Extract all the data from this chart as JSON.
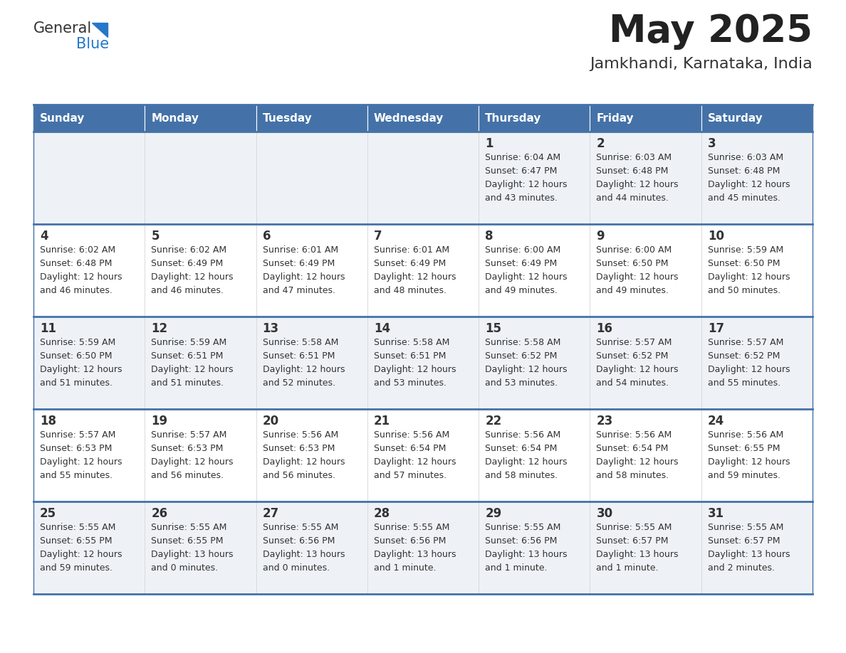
{
  "title": "May 2025",
  "subtitle": "Jamkhandi, Karnataka, India",
  "days_of_week": [
    "Sunday",
    "Monday",
    "Tuesday",
    "Wednesday",
    "Thursday",
    "Friday",
    "Saturday"
  ],
  "header_bg": "#4472a8",
  "header_text": "#ffffff",
  "row_bg_odd": "#eef2f7",
  "row_bg_even": "#ffffff",
  "cell_text_color": "#333333",
  "day_num_color": "#333333",
  "border_color": "#4472a8",
  "logo_black": "#333333",
  "logo_blue": "#2478c8",
  "calendar_data": [
    [
      null,
      null,
      null,
      null,
      {
        "day": "1",
        "sunrise": "6:04 AM",
        "sunset": "6:47 PM",
        "daylight_h": "12 hours",
        "daylight_m": "and 43 minutes."
      },
      {
        "day": "2",
        "sunrise": "6:03 AM",
        "sunset": "6:48 PM",
        "daylight_h": "12 hours",
        "daylight_m": "and 44 minutes."
      },
      {
        "day": "3",
        "sunrise": "6:03 AM",
        "sunset": "6:48 PM",
        "daylight_h": "12 hours",
        "daylight_m": "and 45 minutes."
      }
    ],
    [
      {
        "day": "4",
        "sunrise": "6:02 AM",
        "sunset": "6:48 PM",
        "daylight_h": "12 hours",
        "daylight_m": "and 46 minutes."
      },
      {
        "day": "5",
        "sunrise": "6:02 AM",
        "sunset": "6:49 PM",
        "daylight_h": "12 hours",
        "daylight_m": "and 46 minutes."
      },
      {
        "day": "6",
        "sunrise": "6:01 AM",
        "sunset": "6:49 PM",
        "daylight_h": "12 hours",
        "daylight_m": "and 47 minutes."
      },
      {
        "day": "7",
        "sunrise": "6:01 AM",
        "sunset": "6:49 PM",
        "daylight_h": "12 hours",
        "daylight_m": "and 48 minutes."
      },
      {
        "day": "8",
        "sunrise": "6:00 AM",
        "sunset": "6:49 PM",
        "daylight_h": "12 hours",
        "daylight_m": "and 49 minutes."
      },
      {
        "day": "9",
        "sunrise": "6:00 AM",
        "sunset": "6:50 PM",
        "daylight_h": "12 hours",
        "daylight_m": "and 49 minutes."
      },
      {
        "day": "10",
        "sunrise": "5:59 AM",
        "sunset": "6:50 PM",
        "daylight_h": "12 hours",
        "daylight_m": "and 50 minutes."
      }
    ],
    [
      {
        "day": "11",
        "sunrise": "5:59 AM",
        "sunset": "6:50 PM",
        "daylight_h": "12 hours",
        "daylight_m": "and 51 minutes."
      },
      {
        "day": "12",
        "sunrise": "5:59 AM",
        "sunset": "6:51 PM",
        "daylight_h": "12 hours",
        "daylight_m": "and 51 minutes."
      },
      {
        "day": "13",
        "sunrise": "5:58 AM",
        "sunset": "6:51 PM",
        "daylight_h": "12 hours",
        "daylight_m": "and 52 minutes."
      },
      {
        "day": "14",
        "sunrise": "5:58 AM",
        "sunset": "6:51 PM",
        "daylight_h": "12 hours",
        "daylight_m": "and 53 minutes."
      },
      {
        "day": "15",
        "sunrise": "5:58 AM",
        "sunset": "6:52 PM",
        "daylight_h": "12 hours",
        "daylight_m": "and 53 minutes."
      },
      {
        "day": "16",
        "sunrise": "5:57 AM",
        "sunset": "6:52 PM",
        "daylight_h": "12 hours",
        "daylight_m": "and 54 minutes."
      },
      {
        "day": "17",
        "sunrise": "5:57 AM",
        "sunset": "6:52 PM",
        "daylight_h": "12 hours",
        "daylight_m": "and 55 minutes."
      }
    ],
    [
      {
        "day": "18",
        "sunrise": "5:57 AM",
        "sunset": "6:53 PM",
        "daylight_h": "12 hours",
        "daylight_m": "and 55 minutes."
      },
      {
        "day": "19",
        "sunrise": "5:57 AM",
        "sunset": "6:53 PM",
        "daylight_h": "12 hours",
        "daylight_m": "and 56 minutes."
      },
      {
        "day": "20",
        "sunrise": "5:56 AM",
        "sunset": "6:53 PM",
        "daylight_h": "12 hours",
        "daylight_m": "and 56 minutes."
      },
      {
        "day": "21",
        "sunrise": "5:56 AM",
        "sunset": "6:54 PM",
        "daylight_h": "12 hours",
        "daylight_m": "and 57 minutes."
      },
      {
        "day": "22",
        "sunrise": "5:56 AM",
        "sunset": "6:54 PM",
        "daylight_h": "12 hours",
        "daylight_m": "and 58 minutes."
      },
      {
        "day": "23",
        "sunrise": "5:56 AM",
        "sunset": "6:54 PM",
        "daylight_h": "12 hours",
        "daylight_m": "and 58 minutes."
      },
      {
        "day": "24",
        "sunrise": "5:56 AM",
        "sunset": "6:55 PM",
        "daylight_h": "12 hours",
        "daylight_m": "and 59 minutes."
      }
    ],
    [
      {
        "day": "25",
        "sunrise": "5:55 AM",
        "sunset": "6:55 PM",
        "daylight_h": "12 hours",
        "daylight_m": "and 59 minutes."
      },
      {
        "day": "26",
        "sunrise": "5:55 AM",
        "sunset": "6:55 PM",
        "daylight_h": "13 hours",
        "daylight_m": "and 0 minutes."
      },
      {
        "day": "27",
        "sunrise": "5:55 AM",
        "sunset": "6:56 PM",
        "daylight_h": "13 hours",
        "daylight_m": "and 0 minutes."
      },
      {
        "day": "28",
        "sunrise": "5:55 AM",
        "sunset": "6:56 PM",
        "daylight_h": "13 hours",
        "daylight_m": "and 1 minute."
      },
      {
        "day": "29",
        "sunrise": "5:55 AM",
        "sunset": "6:56 PM",
        "daylight_h": "13 hours",
        "daylight_m": "and 1 minute."
      },
      {
        "day": "30",
        "sunrise": "5:55 AM",
        "sunset": "6:57 PM",
        "daylight_h": "13 hours",
        "daylight_m": "and 1 minute."
      },
      {
        "day": "31",
        "sunrise": "5:55 AM",
        "sunset": "6:57 PM",
        "daylight_h": "13 hours",
        "daylight_m": "and 2 minutes."
      }
    ]
  ]
}
